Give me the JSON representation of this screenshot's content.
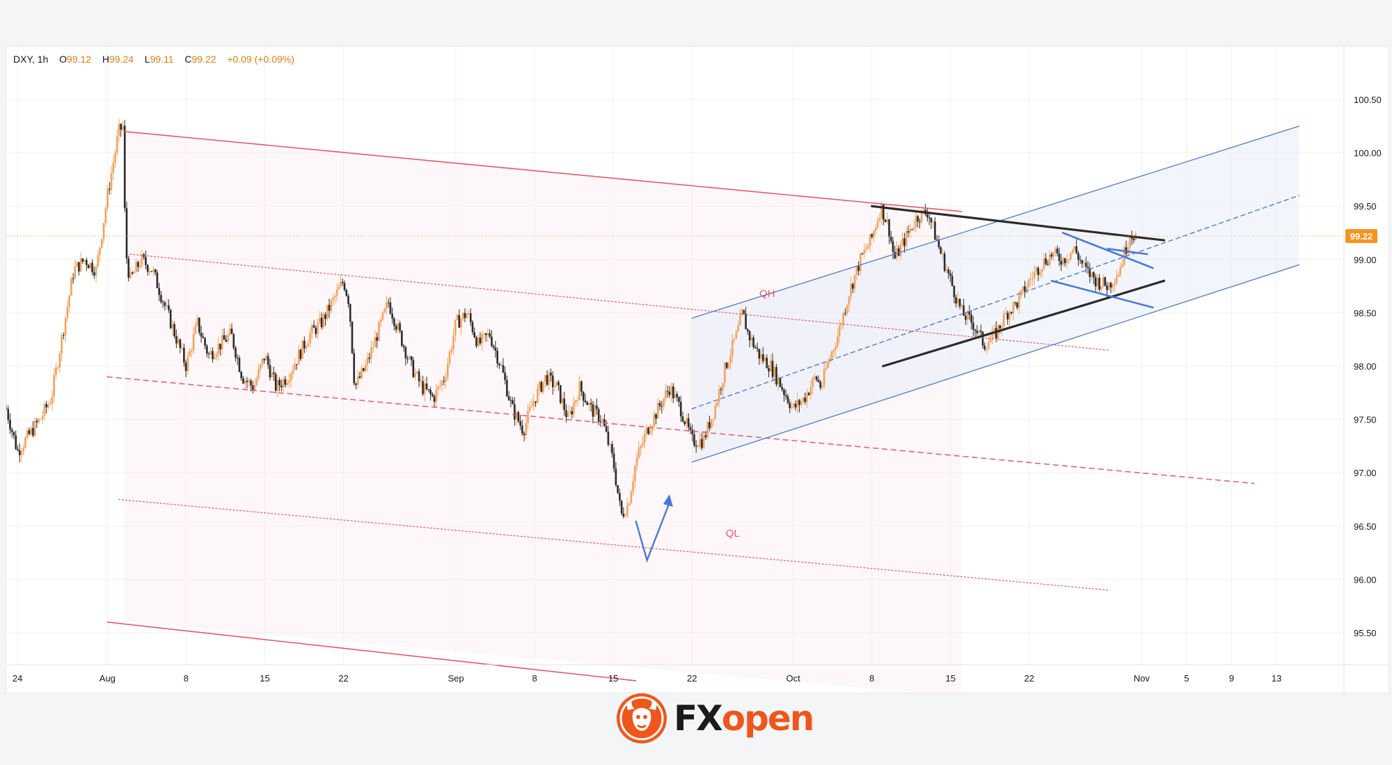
{
  "header": {
    "symbol": "DXY",
    "timeframe": "1h",
    "open_label": "O",
    "open": "99.12",
    "high_label": "H",
    "high": "99.24",
    "low_label": "L",
    "low": "99.11",
    "close_label": "C",
    "close": "99.22",
    "change": "+0.09",
    "change_pct": "(+0.09%)"
  },
  "price_label": "99.22",
  "logo": {
    "fx": "FX",
    "open": "open"
  },
  "colors": {
    "up": "#f2a25a",
    "down": "#2a2a2a",
    "red_line": "#e8576b",
    "blue_line": "#4a78d8",
    "black_line": "#2b2b2b",
    "price_tag": "#f7931e",
    "brand": "#f0561b"
  },
  "chart_data": {
    "type": "candlestick",
    "symbol": "DXY",
    "timeframe": "1h",
    "ylim": [
      95.2,
      100.8
    ],
    "y_ticks": [
      "100.50",
      "100.00",
      "99.50",
      "99.00",
      "98.50",
      "98.00",
      "97.50",
      "97.00",
      "96.50",
      "96.00",
      "95.50"
    ],
    "x_ticks": [
      {
        "label": "24",
        "day": -8
      },
      {
        "label": "Aug",
        "day": 0
      },
      {
        "label": "8",
        "day": 7
      },
      {
        "label": "15",
        "day": 14
      },
      {
        "label": "22",
        "day": 21
      },
      {
        "label": "Sep",
        "day": 31
      },
      {
        "label": "8",
        "day": 38
      },
      {
        "label": "15",
        "day": 45
      },
      {
        "label": "22",
        "day": 52
      },
      {
        "label": "Oct",
        "day": 61
      },
      {
        "label": "8",
        "day": 68
      },
      {
        "label": "15",
        "day": 75
      },
      {
        "label": "22",
        "day": 82
      },
      {
        "label": "Nov",
        "day": 92
      },
      {
        "label": "5",
        "day": 96
      },
      {
        "label": "9",
        "day": 100
      },
      {
        "label": "13",
        "day": 104
      }
    ],
    "xlim": [
      -9,
      110
    ],
    "close_price": 99.22,
    "path": [
      [
        -9,
        97.6
      ],
      [
        -8,
        97.2
      ],
      [
        -6,
        97.5
      ],
      [
        -5,
        97.7
      ],
      [
        -4,
        98.3
      ],
      [
        -3,
        98.9
      ],
      [
        -2,
        99.0
      ],
      [
        -1,
        98.9
      ],
      [
        0,
        99.6
      ],
      [
        0.5,
        99.9
      ],
      [
        1,
        100.2
      ],
      [
        1.4,
        100.25
      ],
      [
        1.6,
        99.1
      ],
      [
        2,
        98.8
      ],
      [
        3,
        99.0
      ],
      [
        4,
        98.9
      ],
      [
        5,
        98.6
      ],
      [
        6,
        98.3
      ],
      [
        7,
        98.0
      ],
      [
        8,
        98.4
      ],
      [
        9,
        98.1
      ],
      [
        10,
        98.2
      ],
      [
        11,
        98.3
      ],
      [
        12,
        97.9
      ],
      [
        13,
        97.8
      ],
      [
        14,
        98.1
      ],
      [
        15,
        97.8
      ],
      [
        16,
        97.9
      ],
      [
        17,
        98.1
      ],
      [
        18,
        98.3
      ],
      [
        19,
        98.4
      ],
      [
        20,
        98.6
      ],
      [
        21,
        98.8
      ],
      [
        21.5,
        98.6
      ],
      [
        22,
        97.8
      ],
      [
        23,
        98.0
      ],
      [
        24,
        98.3
      ],
      [
        25,
        98.6
      ],
      [
        26,
        98.3
      ],
      [
        27,
        98.0
      ],
      [
        28,
        97.8
      ],
      [
        29,
        97.7
      ],
      [
        30,
        97.9
      ],
      [
        31,
        98.4
      ],
      [
        32,
        98.5
      ],
      [
        33,
        98.2
      ],
      [
        34,
        98.3
      ],
      [
        35,
        98.0
      ],
      [
        36,
        97.6
      ],
      [
        37,
        97.4
      ],
      [
        38,
        97.7
      ],
      [
        39,
        97.9
      ],
      [
        40,
        97.8
      ],
      [
        41,
        97.5
      ],
      [
        42,
        97.8
      ],
      [
        43,
        97.6
      ],
      [
        44,
        97.5
      ],
      [
        45,
        97.1
      ],
      [
        45.7,
        96.6
      ],
      [
        46.3,
        96.7
      ],
      [
        47,
        97.1
      ],
      [
        48,
        97.4
      ],
      [
        49,
        97.6
      ],
      [
        50,
        97.8
      ],
      [
        51,
        97.6
      ],
      [
        52,
        97.3
      ],
      [
        53,
        97.3
      ],
      [
        54,
        97.6
      ],
      [
        55,
        98.0
      ],
      [
        56,
        98.3
      ],
      [
        56.5,
        98.5
      ],
      [
        57,
        98.3
      ],
      [
        58,
        98.1
      ],
      [
        59,
        98.0
      ],
      [
        60,
        97.8
      ],
      [
        61,
        97.6
      ],
      [
        62,
        97.7
      ],
      [
        63,
        97.9
      ],
      [
        63.5,
        97.8
      ],
      [
        64,
        98.0
      ],
      [
        65,
        98.3
      ],
      [
        66,
        98.7
      ],
      [
        67,
        99.0
      ],
      [
        68,
        99.2
      ],
      [
        68.8,
        99.5
      ],
      [
        69.5,
        99.3
      ],
      [
        70,
        99.0
      ],
      [
        71,
        99.2
      ],
      [
        72,
        99.4
      ],
      [
        73,
        99.45
      ],
      [
        74,
        99.1
      ],
      [
        75,
        98.8
      ],
      [
        76,
        98.5
      ],
      [
        77,
        98.4
      ],
      [
        78,
        98.2
      ],
      [
        79,
        98.3
      ],
      [
        80,
        98.5
      ],
      [
        81,
        98.6
      ],
      [
        82,
        98.8
      ],
      [
        83,
        98.95
      ],
      [
        84,
        99.05
      ],
      [
        85,
        99.0
      ],
      [
        86,
        99.1
      ],
      [
        87,
        98.9
      ],
      [
        88,
        98.8
      ],
      [
        89,
        98.75
      ],
      [
        90,
        98.9
      ],
      [
        91,
        99.25
      ],
      [
        91.5,
        99.22
      ]
    ],
    "annotations": [
      {
        "text": "QH",
        "day": 58,
        "price": 98.65
      },
      {
        "text": "QL",
        "day": 55,
        "price": 96.4
      }
    ],
    "lines": [
      {
        "kind": "red-solid",
        "from": [
          1.5,
          100.2
        ],
        "to": [
          76,
          99.45
        ]
      },
      {
        "kind": "red-dotted",
        "from": [
          2,
          99.05
        ],
        "to": [
          89,
          98.15
        ]
      },
      {
        "kind": "red-dashed",
        "from": [
          0,
          97.9
        ],
        "to": [
          102,
          96.9
        ]
      },
      {
        "kind": "red-dotted",
        "from": [
          1,
          96.75
        ],
        "to": [
          89,
          95.9
        ]
      },
      {
        "kind": "red-solid",
        "from": [
          0,
          95.6
        ],
        "to": [
          47,
          95.05
        ]
      },
      {
        "kind": "blue-solid",
        "from": [
          52,
          98.45
        ],
        "to": [
          106,
          100.25
        ]
      },
      {
        "kind": "blue-dashed",
        "from": [
          52,
          97.6
        ],
        "to": [
          106,
          99.6
        ]
      },
      {
        "kind": "blue-solid",
        "from": [
          52,
          97.1
        ],
        "to": [
          106,
          98.95
        ]
      },
      {
        "kind": "black-thick",
        "from": [
          68,
          99.5
        ],
        "to": [
          94,
          99.18
        ]
      },
      {
        "kind": "black-thick",
        "from": [
          69,
          98.0
        ],
        "to": [
          94,
          98.8
        ]
      },
      {
        "kind": "blue-thick",
        "from": [
          85,
          99.25
        ],
        "to": [
          93,
          98.92
        ]
      },
      {
        "kind": "blue-thick",
        "from": [
          84,
          98.8
        ],
        "to": [
          93,
          98.55
        ]
      },
      {
        "kind": "blue-thick",
        "from": [
          89,
          99.1
        ],
        "to": [
          92.5,
          99.05
        ]
      },
      {
        "kind": "blue-arrow",
        "points": [
          [
            47,
            96.55
          ],
          [
            48,
            96.18
          ],
          [
            50,
            96.72
          ]
        ]
      },
      {
        "kind": "orange-dotted-h",
        "price": 99.22
      }
    ]
  }
}
